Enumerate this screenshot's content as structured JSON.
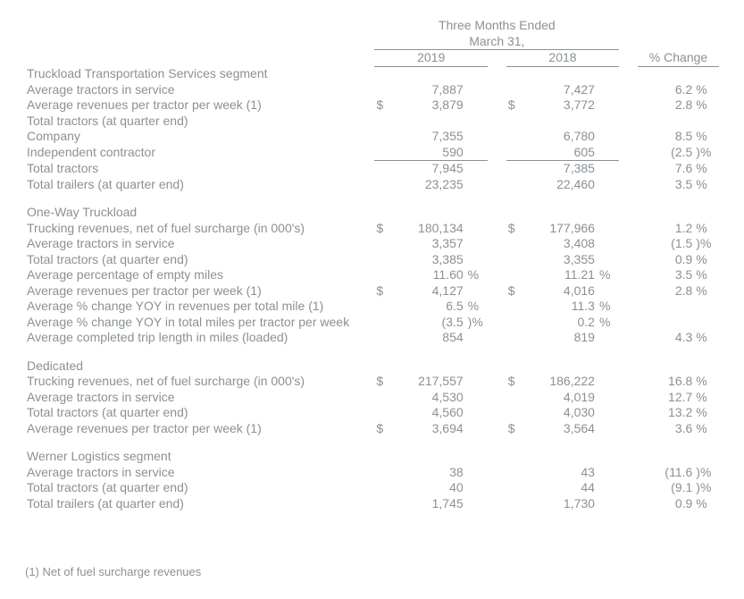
{
  "header": {
    "period_line1": "Three Months Ended",
    "period_line2": "March 31,",
    "year1": "2019",
    "year2": "2018",
    "change": "% Change"
  },
  "sections": [
    {
      "title": "Truckload Transportation Services segment",
      "rows": [
        {
          "label": "Average tractors in service",
          "s1": "",
          "v1": "7,887",
          "u1": "",
          "s2": "",
          "v2": "7,427",
          "u2": "",
          "pv": "6.2",
          "pu": "%"
        },
        {
          "label": "Average revenues per tractor per week (1)",
          "s1": "$",
          "v1": "3,879",
          "u1": "",
          "s2": "$",
          "v2": "3,772",
          "u2": "",
          "pv": "2.8",
          "pu": "%"
        },
        {
          "label": "Total tractors (at quarter end)",
          "s1": "",
          "v1": "",
          "u1": "",
          "s2": "",
          "v2": "",
          "u2": "",
          "pv": "",
          "pu": ""
        },
        {
          "label": "Company",
          "s1": "",
          "v1": "7,355",
          "u1": "",
          "s2": "",
          "v2": "6,780",
          "u2": "",
          "pv": "8.5",
          "pu": "%"
        },
        {
          "label": "Independent contractor",
          "s1": "",
          "v1": "590",
          "u1": "",
          "s2": "",
          "v2": "605",
          "u2": "",
          "pv": "(2.5",
          "pu": ")%",
          "cls": "subtotal-line"
        },
        {
          "label": "Total tractors",
          "s1": "",
          "v1": "7,945",
          "u1": "",
          "s2": "",
          "v2": "7,385",
          "u2": "",
          "pv": "7.6",
          "pu": "%"
        },
        {
          "label": "Total trailers (at quarter end)",
          "s1": "",
          "v1": "23,235",
          "u1": "",
          "s2": "",
          "v2": "22,460",
          "u2": "",
          "pv": "3.5",
          "pu": "%"
        }
      ]
    },
    {
      "title": "One-Way Truckload",
      "rows": [
        {
          "label": "Trucking revenues, net of fuel surcharge (in 000's)",
          "s1": "$",
          "v1": "180,134",
          "u1": "",
          "s2": "$",
          "v2": "177,966",
          "u2": "",
          "pv": "1.2",
          "pu": "%"
        },
        {
          "label": "Average tractors in service",
          "s1": "",
          "v1": "3,357",
          "u1": "",
          "s2": "",
          "v2": "3,408",
          "u2": "",
          "pv": "(1.5",
          "pu": ")%"
        },
        {
          "label": "Total tractors (at quarter end)",
          "s1": "",
          "v1": "3,385",
          "u1": "",
          "s2": "",
          "v2": "3,355",
          "u2": "",
          "pv": "0.9",
          "pu": "%"
        },
        {
          "label": "Average percentage of empty miles",
          "s1": "",
          "v1": "11.60",
          "u1": "%",
          "s2": "",
          "v2": "11.21",
          "u2": "%",
          "pv": "3.5",
          "pu": "%"
        },
        {
          "label": "Average revenues per tractor per week (1)",
          "s1": "$",
          "v1": "4,127",
          "u1": "",
          "s2": "$",
          "v2": "4,016",
          "u2": "",
          "pv": "2.8",
          "pu": "%"
        },
        {
          "label": "Average % change YOY in revenues per total mile (1)",
          "s1": "",
          "v1": "6.5",
          "u1": "%",
          "s2": "",
          "v2": "11.3",
          "u2": "%",
          "pv": "",
          "pu": ""
        },
        {
          "label": "Average % change YOY in total miles per tractor per week",
          "s1": "",
          "v1": "(3.5",
          "u1": ")%",
          "s2": "",
          "v2": "0.2",
          "u2": "%",
          "pv": "",
          "pu": ""
        },
        {
          "label": "Average completed trip length in miles (loaded)",
          "s1": "",
          "v1": "854",
          "u1": "",
          "s2": "",
          "v2": "819",
          "u2": "",
          "pv": "4.3",
          "pu": "%"
        }
      ]
    },
    {
      "title": "Dedicated",
      "rows": [
        {
          "label": "Trucking revenues, net of fuel surcharge (in 000's)",
          "s1": "$",
          "v1": "217,557",
          "u1": "",
          "s2": "$",
          "v2": "186,222",
          "u2": "",
          "pv": "16.8",
          "pu": "%"
        },
        {
          "label": "Average tractors in service",
          "s1": "",
          "v1": "4,530",
          "u1": "",
          "s2": "",
          "v2": "4,019",
          "u2": "",
          "pv": "12.7",
          "pu": "%"
        },
        {
          "label": "Total tractors (at quarter end)",
          "s1": "",
          "v1": "4,560",
          "u1": "",
          "s2": "",
          "v2": "4,030",
          "u2": "",
          "pv": "13.2",
          "pu": "%"
        },
        {
          "label": "Average revenues per tractor per week (1)",
          "s1": "$",
          "v1": "3,694",
          "u1": "",
          "s2": "$",
          "v2": "3,564",
          "u2": "",
          "pv": "3.6",
          "pu": "%"
        }
      ]
    },
    {
      "title": "Werner Logistics segment",
      "rows": [
        {
          "label": "Average tractors in service",
          "s1": "",
          "v1": "38",
          "u1": "",
          "s2": "",
          "v2": "43",
          "u2": "",
          "pv": "(11.6",
          "pu": ")%"
        },
        {
          "label": "Total tractors (at quarter end)",
          "s1": "",
          "v1": "40",
          "u1": "",
          "s2": "",
          "v2": "44",
          "u2": "",
          "pv": "(9.1",
          "pu": ")%"
        },
        {
          "label": "Total trailers (at quarter end)",
          "s1": "",
          "v1": "1,745",
          "u1": "",
          "s2": "",
          "v2": "1,730",
          "u2": "",
          "pv": "0.9",
          "pu": "%"
        }
      ]
    }
  ],
  "footnote": "(1) Net of fuel surcharge revenues"
}
